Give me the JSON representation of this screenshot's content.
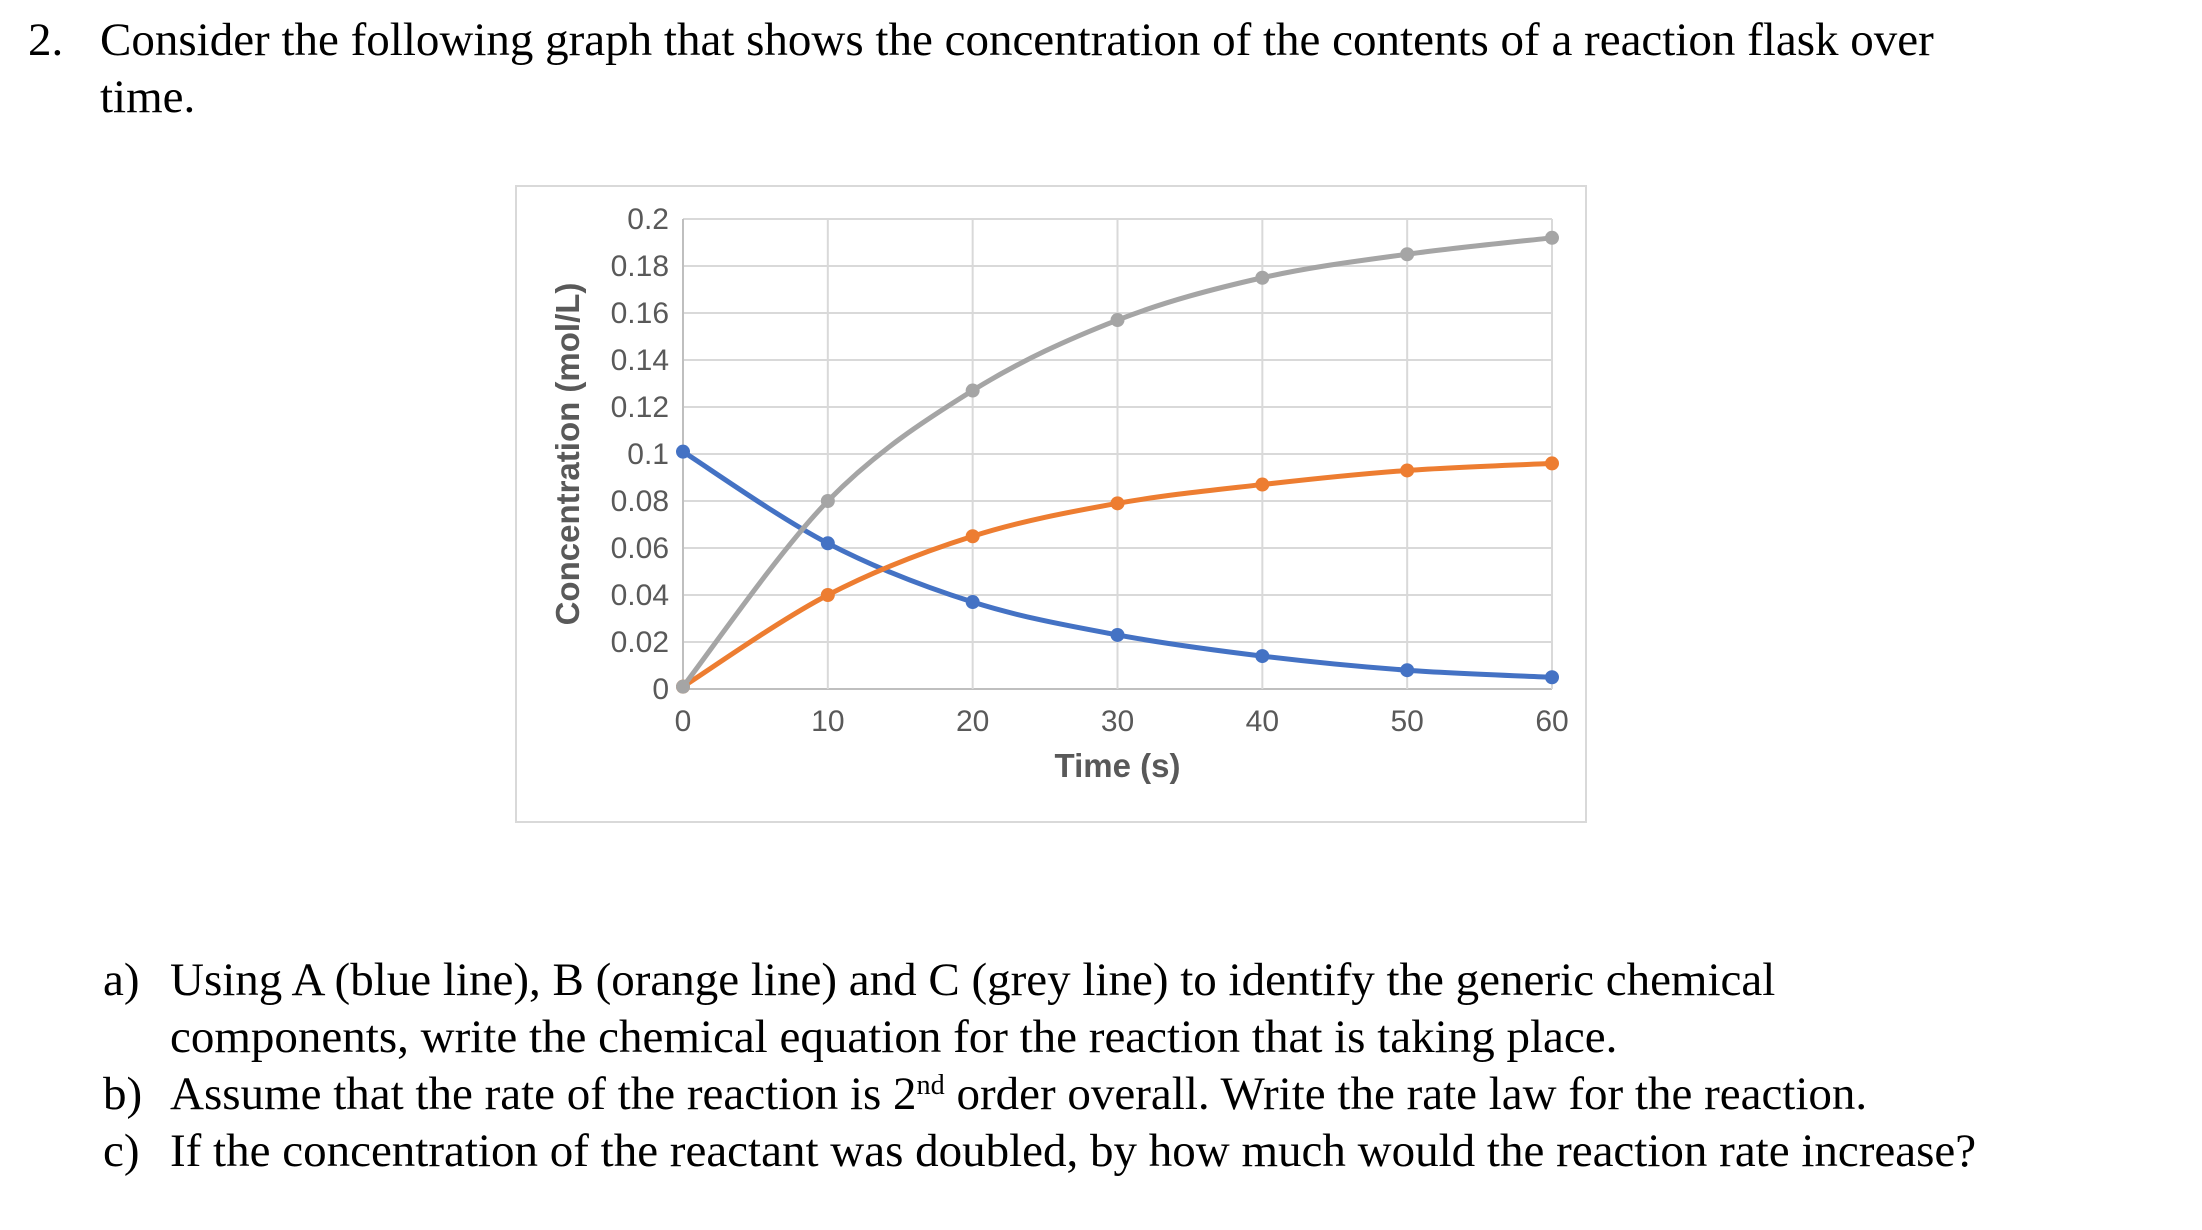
{
  "question": {
    "number": "2.",
    "line1": "Consider the following graph that shows the concentration of the contents of a reaction flask over",
    "line2": "time."
  },
  "subquestions": [
    {
      "label": "a)",
      "line1": "Using A (blue line), B (orange line) and C (grey line) to identify the generic chemical",
      "line2": "components, write the chemical equation for the reaction that is taking place."
    },
    {
      "label": "b)",
      "text_before_superscript": "Assume that the rate of the reaction is 2",
      "superscript": "nd",
      "text_after_superscript": " order overall. Write the rate law for the reaction."
    },
    {
      "label": "c)",
      "text": "If the concentration of the reactant was doubled, by how much would the reaction rate increase?"
    }
  ],
  "chart_data": {
    "type": "line",
    "title": "",
    "xlabel": "Time (s)",
    "ylabel": "Concentration (mol/L)",
    "x": [
      0,
      10,
      20,
      30,
      40,
      50,
      60
    ],
    "series": [
      {
        "name": "A (blue line)",
        "color": "#4472C4",
        "values": [
          0.101,
          0.062,
          0.037,
          0.023,
          0.014,
          0.008,
          0.005
        ]
      },
      {
        "name": "B (orange line)",
        "color": "#ED7D31",
        "values": [
          0.001,
          0.04,
          0.065,
          0.079,
          0.087,
          0.093,
          0.096
        ]
      },
      {
        "name": "C (grey line)",
        "color": "#A5A5A5",
        "values": [
          0.001,
          0.08,
          0.127,
          0.157,
          0.175,
          0.185,
          0.192
        ]
      }
    ],
    "xlim": [
      0,
      60
    ],
    "ylim": [
      0,
      0.2
    ],
    "xticks": [
      "0",
      "10",
      "20",
      "30",
      "40",
      "50",
      "60"
    ],
    "yticks": [
      "0",
      "0.02",
      "0.04",
      "0.06",
      "0.08",
      "0.1",
      "0.12",
      "0.14",
      "0.16",
      "0.18",
      "0.2"
    ],
    "grid": true,
    "legend": "none",
    "marker": "circle",
    "colors": {
      "grid": "#D9D9D9",
      "axis": "#BFBFBF",
      "tick_text": "#595959",
      "chart_border": "#D9D9D9"
    }
  }
}
